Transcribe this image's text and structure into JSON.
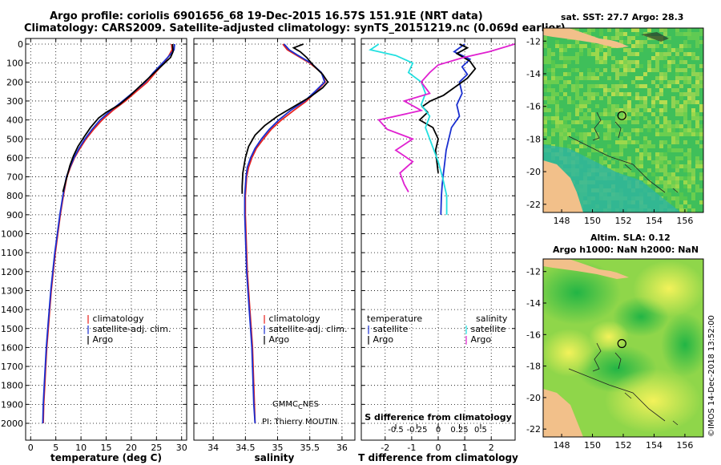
{
  "header": {
    "line1": "Argo profile: coriolis 6901656_68 19-Dec-2015 16.57S 151.91E (NRT data)",
    "line2": "Climatology: CARS2009. Satellite-adjusted climatology: synTS_20151219.nc (0.069d earlier)"
  },
  "credits": {
    "gmmc_prefix": "GMMC",
    "gmmc_sub": "C",
    "gmmc_suffix": "NES",
    "pi": "PI: Thierry MOUTIN",
    "watermark": "©IMOS 14-Dec-2018 13:52:00"
  },
  "colors": {
    "climatology": "#e8231e",
    "satellite": "#1a2fd0",
    "argo": "#000000",
    "sal_satellite": "#22e0e0",
    "sal_argo": "#e020d0",
    "land": "#f2c08a"
  },
  "legends": {
    "temp": {
      "climatology": "climatology",
      "satellite": "satellite-adj. clim.",
      "argo": "Argo"
    },
    "sal": {
      "climatology": "climatology",
      "satellite": "satellite-adj. clim.",
      "argo": "Argo"
    },
    "diff": {
      "temp_head": "temperature",
      "sal_head": "salinity",
      "satellite": "satellite",
      "argo": "Argo",
      "sal_satellite": "satellite",
      "sal_argo": "Argo"
    }
  },
  "maps": {
    "sst_title": "sat. SST: 27.7 Argo: 28.3",
    "alt_title1": "Altim. SLA: 0.12",
    "alt_title2": "Argo h1000: NaN h2000: NaN",
    "lat_ticks": [
      "-12",
      "-14",
      "-16",
      "-18",
      "-20",
      "-22"
    ],
    "lon_ticks": [
      "148",
      "150",
      "152",
      "154",
      "156"
    ],
    "lat_values": [
      -12,
      -14,
      -16,
      -18,
      -20,
      -22
    ],
    "lon_values": [
      148,
      150,
      152,
      154,
      156
    ],
    "lat_range": [
      -22.5,
      -11.2
    ],
    "lon_range": [
      146.8,
      157.2
    ],
    "float_position": {
      "lon": 151.91,
      "lat": -16.57
    }
  },
  "chart_data": [
    {
      "type": "line",
      "name": "temperature",
      "xlabel": "temperature (deg C)",
      "ylabel": "depth",
      "xlim": [
        -1,
        31
      ],
      "ylim": [
        2100,
        0
      ],
      "xticks": [
        0,
        5,
        10,
        15,
        20,
        25,
        30
      ],
      "yticks": [
        0,
        100,
        200,
        300,
        400,
        500,
        600,
        700,
        800,
        900,
        1000,
        1100,
        1200,
        1300,
        1400,
        1500,
        1600,
        1700,
        1800,
        1900,
        2000
      ],
      "series": [
        {
          "name": "climatology",
          "color": "#e8231e",
          "points": [
            [
              28.0,
              0
            ],
            [
              28.1,
              30
            ],
            [
              27.5,
              60
            ],
            [
              26.5,
              100
            ],
            [
              24.8,
              150
            ],
            [
              23.2,
              200
            ],
            [
              21.0,
              250
            ],
            [
              18.8,
              300
            ],
            [
              16.3,
              350
            ],
            [
              14.2,
              400
            ],
            [
              12.5,
              450
            ],
            [
              11.0,
              500
            ],
            [
              9.8,
              550
            ],
            [
              8.7,
              600
            ],
            [
              7.9,
              650
            ],
            [
              7.2,
              700
            ],
            [
              6.5,
              800
            ],
            [
              5.9,
              900
            ],
            [
              5.4,
              1000
            ],
            [
              4.9,
              1100
            ],
            [
              4.5,
              1200
            ],
            [
              4.1,
              1300
            ],
            [
              3.8,
              1400
            ],
            [
              3.5,
              1500
            ],
            [
              3.2,
              1600
            ],
            [
              3.0,
              1700
            ],
            [
              2.8,
              1800
            ],
            [
              2.6,
              1900
            ],
            [
              2.5,
              2000
            ]
          ]
        },
        {
          "name": "satellite-adj. clim.",
          "color": "#1a2fd0",
          "points": [
            [
              28.6,
              0
            ],
            [
              28.5,
              30
            ],
            [
              27.6,
              60
            ],
            [
              26.2,
              100
            ],
            [
              24.4,
              150
            ],
            [
              22.8,
              200
            ],
            [
              20.6,
              250
            ],
            [
              18.3,
              300
            ],
            [
              15.9,
              350
            ],
            [
              13.8,
              400
            ],
            [
              12.2,
              450
            ],
            [
              10.8,
              500
            ],
            [
              9.6,
              550
            ],
            [
              8.6,
              600
            ],
            [
              7.8,
              650
            ],
            [
              7.1,
              700
            ],
            [
              6.4,
              800
            ],
            [
              5.8,
              900
            ],
            [
              5.3,
              1000
            ],
            [
              4.8,
              1100
            ],
            [
              4.4,
              1200
            ],
            [
              4.0,
              1300
            ],
            [
              3.7,
              1400
            ],
            [
              3.4,
              1500
            ],
            [
              3.1,
              1600
            ],
            [
              2.9,
              1700
            ],
            [
              2.7,
              1800
            ],
            [
              2.5,
              1900
            ],
            [
              2.4,
              2000
            ]
          ]
        },
        {
          "name": "Argo",
          "color": "#000000",
          "points": [
            [
              28.2,
              0
            ],
            [
              28.3,
              40
            ],
            [
              27.8,
              70
            ],
            [
              26.6,
              100
            ],
            [
              25.0,
              140
            ],
            [
              23.4,
              180
            ],
            [
              21.8,
              220
            ],
            [
              19.8,
              270
            ],
            [
              17.6,
              320
            ],
            [
              15.0,
              360
            ],
            [
              13.5,
              390
            ],
            [
              11.9,
              440
            ],
            [
              10.6,
              490
            ],
            [
              9.4,
              540
            ],
            [
              8.5,
              590
            ],
            [
              7.8,
              640
            ],
            [
              7.3,
              690
            ],
            [
              6.8,
              740
            ],
            [
              6.4,
              780
            ]
          ]
        }
      ]
    },
    {
      "type": "line",
      "name": "salinity",
      "xlabel": "salinity",
      "xlim": [
        33.7,
        36.2
      ],
      "ylim": [
        2100,
        0
      ],
      "xticks": [
        34,
        34.5,
        35,
        35.5,
        36
      ],
      "xticklabels": [
        "34",
        "34.5",
        "35",
        "35.5",
        "36"
      ],
      "series": [
        {
          "name": "climatology",
          "color": "#e8231e",
          "points": [
            [
              35.08,
              0
            ],
            [
              35.15,
              30
            ],
            [
              35.3,
              60
            ],
            [
              35.5,
              100
            ],
            [
              35.68,
              150
            ],
            [
              35.74,
              200
            ],
            [
              35.6,
              250
            ],
            [
              35.45,
              300
            ],
            [
              35.25,
              350
            ],
            [
              35.06,
              400
            ],
            [
              34.9,
              450
            ],
            [
              34.78,
              500
            ],
            [
              34.67,
              550
            ],
            [
              34.6,
              600
            ],
            [
              34.55,
              650
            ],
            [
              34.52,
              700
            ],
            [
              34.5,
              800
            ],
            [
              34.5,
              900
            ],
            [
              34.51,
              1000
            ],
            [
              34.52,
              1100
            ],
            [
              34.53,
              1200
            ],
            [
              34.55,
              1300
            ],
            [
              34.57,
              1400
            ],
            [
              34.59,
              1500
            ],
            [
              34.61,
              1600
            ],
            [
              34.62,
              1700
            ],
            [
              34.63,
              1800
            ],
            [
              34.64,
              1900
            ],
            [
              34.65,
              2000
            ]
          ]
        },
        {
          "name": "satellite-adj. clim.",
          "color": "#1a2fd0",
          "points": [
            [
              35.1,
              0
            ],
            [
              35.18,
              30
            ],
            [
              35.32,
              60
            ],
            [
              35.52,
              100
            ],
            [
              35.68,
              150
            ],
            [
              35.73,
              200
            ],
            [
              35.58,
              250
            ],
            [
              35.42,
              300
            ],
            [
              35.2,
              350
            ],
            [
              35.02,
              400
            ],
            [
              34.87,
              450
            ],
            [
              34.75,
              500
            ],
            [
              34.65,
              550
            ],
            [
              34.58,
              600
            ],
            [
              34.53,
              650
            ],
            [
              34.51,
              700
            ],
            [
              34.49,
              800
            ],
            [
              34.49,
              900
            ],
            [
              34.5,
              1000
            ],
            [
              34.51,
              1100
            ],
            [
              34.52,
              1200
            ],
            [
              34.54,
              1300
            ],
            [
              34.56,
              1400
            ],
            [
              34.58,
              1500
            ],
            [
              34.6,
              1600
            ],
            [
              34.61,
              1700
            ],
            [
              34.62,
              1800
            ],
            [
              34.63,
              1900
            ],
            [
              34.65,
              2000
            ]
          ]
        },
        {
          "name": "Argo",
          "color": "#000000",
          "points": [
            [
              35.4,
              0
            ],
            [
              35.25,
              20
            ],
            [
              35.35,
              40
            ],
            [
              35.45,
              70
            ],
            [
              35.55,
              110
            ],
            [
              35.7,
              160
            ],
            [
              35.78,
              200
            ],
            [
              35.7,
              230
            ],
            [
              35.5,
              280
            ],
            [
              35.25,
              330
            ],
            [
              35.0,
              380
            ],
            [
              34.8,
              430
            ],
            [
              34.65,
              480
            ],
            [
              34.55,
              540
            ],
            [
              34.5,
              600
            ],
            [
              34.46,
              680
            ],
            [
              34.45,
              750
            ],
            [
              34.45,
              790
            ]
          ]
        }
      ]
    },
    {
      "type": "line",
      "name": "difference",
      "xlabel": "T difference from climatology",
      "inner_label": "S difference from climatology",
      "xlim": [
        -2.9,
        2.9
      ],
      "ylim": [
        2100,
        0
      ],
      "xticks": [
        -2,
        -1,
        0,
        1,
        2
      ],
      "xticklabels": [
        "-2",
        "-1",
        "0",
        "1",
        "2"
      ],
      "sticks": [
        -0.5,
        -0.25,
        0,
        0.25,
        0.5
      ],
      "sticklabels": [
        "-0.5",
        "-0.25",
        "0",
        "0.25",
        "0.5"
      ],
      "series": [
        {
          "name": "T satellite",
          "color": "#1a2fd0",
          "points": [
            [
              1.0,
              0
            ],
            [
              0.6,
              40
            ],
            [
              1.2,
              80
            ],
            [
              0.9,
              120
            ],
            [
              1.1,
              160
            ],
            [
              0.8,
              200
            ],
            [
              0.9,
              260
            ],
            [
              0.7,
              320
            ],
            [
              0.8,
              380
            ],
            [
              0.5,
              440
            ],
            [
              0.4,
              500
            ],
            [
              0.3,
              560
            ],
            [
              0.25,
              620
            ],
            [
              0.2,
              680
            ],
            [
              0.15,
              740
            ],
            [
              0.12,
              800
            ],
            [
              0.1,
              900
            ]
          ]
        },
        {
          "name": "T Argo",
          "color": "#000000",
          "points": [
            [
              0.8,
              0
            ],
            [
              1.1,
              20
            ],
            [
              0.7,
              50
            ],
            [
              1.2,
              90
            ],
            [
              1.4,
              130
            ],
            [
              1.1,
              180
            ],
            [
              0.6,
              230
            ],
            [
              0.2,
              270
            ],
            [
              -0.3,
              300
            ],
            [
              -0.6,
              330
            ],
            [
              -0.4,
              360
            ],
            [
              -0.7,
              400
            ],
            [
              -0.2,
              440
            ],
            [
              0.0,
              500
            ],
            [
              -0.1,
              560
            ],
            [
              -0.05,
              620
            ],
            [
              0.0,
              680
            ]
          ]
        },
        {
          "name": "S satellite",
          "color": "#22e0e0",
          "points": [
            [
              -0.7,
              0
            ],
            [
              -0.8,
              30
            ],
            [
              -0.5,
              60
            ],
            [
              -0.3,
              100
            ],
            [
              -0.35,
              150
            ],
            [
              -0.2,
              200
            ],
            [
              -0.15,
              260
            ],
            [
              -0.2,
              320
            ],
            [
              -0.1,
              380
            ],
            [
              -0.15,
              440
            ],
            [
              -0.1,
              500
            ],
            [
              -0.05,
              560
            ],
            [
              0.0,
              620
            ],
            [
              0.05,
              700
            ],
            [
              0.1,
              800
            ],
            [
              0.1,
              900
            ]
          ]
        },
        {
          "name": "S Argo",
          "color": "#e020d0",
          "points": [
            [
              0.9,
              0
            ],
            [
              0.6,
              40
            ],
            [
              0.3,
              70
            ],
            [
              0.0,
              110
            ],
            [
              -0.1,
              150
            ],
            [
              -0.2,
              200
            ],
            [
              -0.1,
              260
            ],
            [
              -0.4,
              300
            ],
            [
              -0.2,
              350
            ],
            [
              -0.7,
              400
            ],
            [
              -0.6,
              450
            ],
            [
              -0.3,
              500
            ],
            [
              -0.5,
              560
            ],
            [
              -0.3,
              620
            ],
            [
              -0.45,
              680
            ],
            [
              -0.4,
              740
            ],
            [
              -0.35,
              780
            ]
          ]
        }
      ]
    }
  ]
}
